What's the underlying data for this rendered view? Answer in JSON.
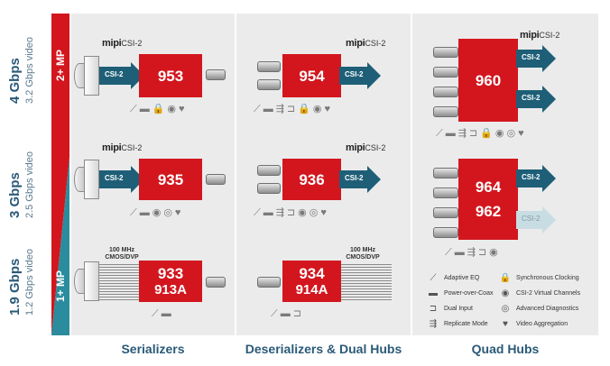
{
  "rates": [
    {
      "main": "4 Gbps",
      "sub": "3.2 Gbps video"
    },
    {
      "main": "3 Gbps",
      "sub": "2.5 Gbps video"
    },
    {
      "main": "1.9 Gbps",
      "sub": "1.2 Gbps video"
    }
  ],
  "bands": {
    "top": "2+ MP",
    "bottom": "1+ MP",
    "top_color": "#d3161e",
    "bottom_color": "#2a8c9c"
  },
  "mipi": {
    "logo": "mipi",
    "tag": "CSI-2"
  },
  "arrow_label": "CSI-2",
  "cmos_label": [
    "100 MHz",
    "CMOS/DVP"
  ],
  "chips": {
    "c953": "953",
    "c954": "954",
    "c960": "960",
    "c935": "935",
    "c936": "936",
    "c964": "964",
    "c962": "962",
    "c933": "933",
    "c913a": "913A",
    "c934": "934",
    "c914a": "914A"
  },
  "icons": {
    "adaptive_eq": "⟋",
    "power_over_coax": "▬",
    "dual_input": "⊐",
    "replicate": "⇶",
    "sync_clock": "🔒",
    "virtual_channels": "◉",
    "diagnostics": "◎",
    "aggregation": "♥"
  },
  "legend": [
    {
      "icon": "⟋",
      "label": "Adaptive EQ"
    },
    {
      "icon": "▬",
      "label": "Power-over-Coax"
    },
    {
      "icon": "⊐",
      "label": "Dual Input"
    },
    {
      "icon": "⇶",
      "label": "Replicate Mode"
    },
    {
      "icon": "🔒",
      "label": "Synchronous Clocking"
    },
    {
      "icon": "◉",
      "label": "CSI-2 Virtual Channels"
    },
    {
      "icon": "◎",
      "label": "Advanced Diagnostics"
    },
    {
      "icon": "♥",
      "label": "Video Aggregation"
    }
  ],
  "columns": [
    "Serializers",
    "Deserializers & Dual Hubs",
    "Quad Hubs"
  ]
}
